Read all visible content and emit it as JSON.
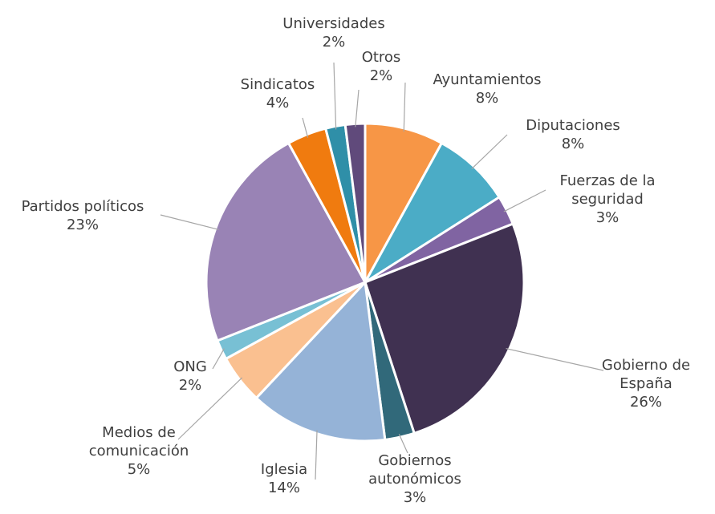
{
  "chart_data": {
    "type": "pie",
    "categories": [
      "Ayuntamientos",
      "Diputaciones",
      "Fuerzas de la seguridad",
      "Gobierno de España",
      "Gobiernos autonómicos",
      "Iglesia",
      "Medios de comunicación",
      "ONG",
      "Partidos políticos",
      "Sindicatos",
      "Universidades",
      "Otros"
    ],
    "values": [
      8,
      8,
      3,
      26,
      3,
      14,
      5,
      2,
      23,
      4,
      2,
      2
    ],
    "value_labels": [
      "8%",
      "8%",
      "3%",
      "26%",
      "3%",
      "14%",
      "5%",
      "2%",
      "23%",
      "4%",
      "2%",
      "2%"
    ],
    "colors": [
      "#f79646",
      "#4bacc6",
      "#8064a2",
      "#403151",
      "#31697a",
      "#95b3d7",
      "#fac090",
      "#78c0d4",
      "#9983b5",
      "#f07b0f",
      "#2f8fa8",
      "#604a7b"
    ]
  }
}
